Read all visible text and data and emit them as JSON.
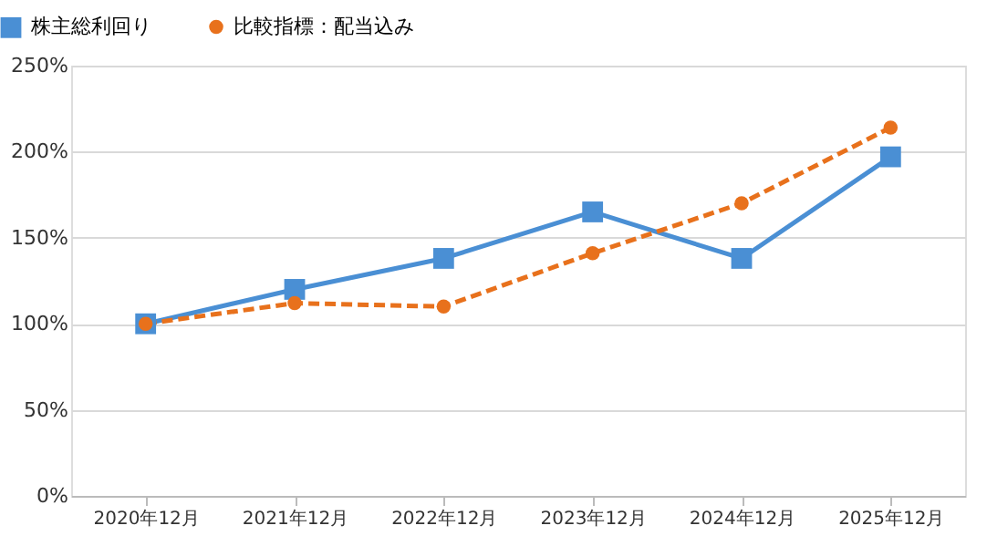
{
  "chart_data": {
    "type": "line",
    "categories": [
      "2020年12月",
      "2021年12月",
      "2022年12月",
      "2023年12月",
      "2024年12月",
      "2025年12月"
    ],
    "series": [
      {
        "name": "株主総利回り",
        "color": "#4a8fd4",
        "marker": "square",
        "line_style": "solid",
        "values": [
          100,
          120,
          138,
          165,
          138,
          197
        ]
      },
      {
        "name": "比較指標：配当込み",
        "color": "#e8711c",
        "marker": "circle",
        "line_style": "dashed",
        "values": [
          100,
          112,
          110,
          141,
          170,
          214
        ]
      }
    ],
    "ylim": [
      0,
      250
    ],
    "yticks": [
      {
        "value": 0,
        "label": "0%"
      },
      {
        "value": 50,
        "label": "50%"
      },
      {
        "value": 100,
        "label": "100%"
      },
      {
        "value": 150,
        "label": "150%"
      },
      {
        "value": 200,
        "label": "200%"
      },
      {
        "value": 250,
        "label": "250%"
      }
    ],
    "grid": "y",
    "legend": "top left"
  }
}
